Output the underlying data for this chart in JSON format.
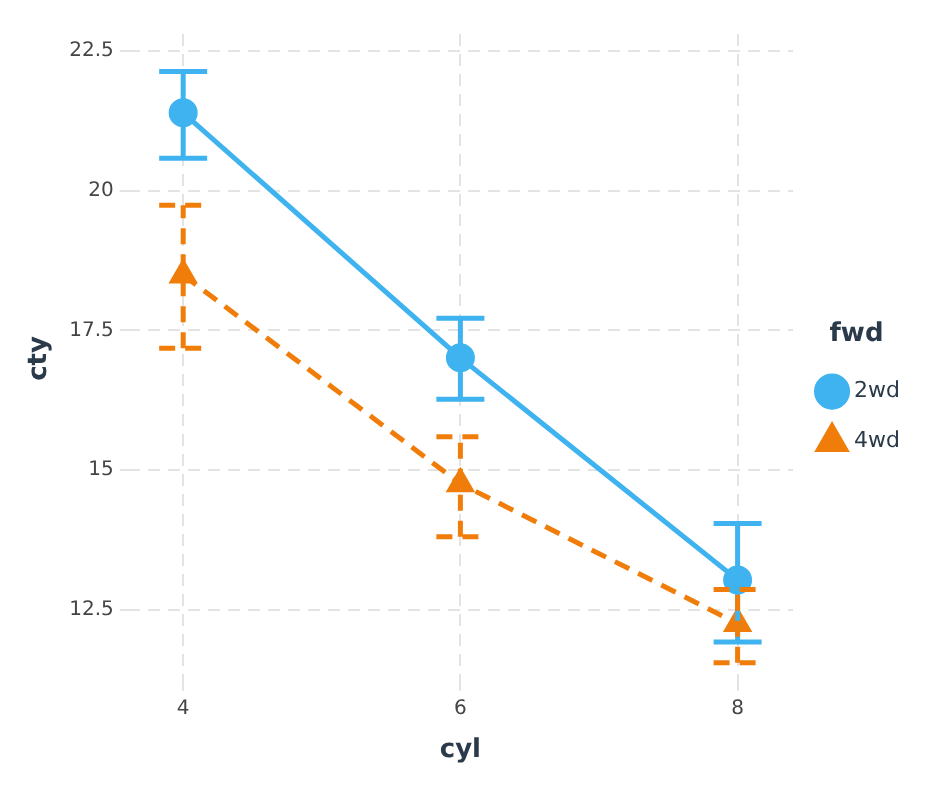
{
  "chart_data": {
    "type": "line",
    "xlabel": "cyl",
    "ylabel": "cty",
    "legend_title": "fwd",
    "legend": "right",
    "grid": true,
    "x": [
      4,
      6,
      8
    ],
    "xlim": [
      3.6,
      8.4
    ],
    "xticks": [
      4,
      6,
      8
    ],
    "ylim": [
      11.2,
      22.8
    ],
    "yticks": [
      12.5,
      15,
      17.5,
      20,
      22.5
    ],
    "series": [
      {
        "name": "2wd",
        "color": "#3fb3f0",
        "marker": "circle",
        "line_style": "solid",
        "values": [
          21.39,
          17.01,
          13.04
        ],
        "errors": [
          [
            20.58,
            22.13
          ],
          [
            16.27,
            17.72
          ],
          [
            11.93,
            14.05
          ]
        ]
      },
      {
        "name": "4wd",
        "color": "#f07d0a",
        "marker": "triangle",
        "line_style": "dashed",
        "values": [
          18.49,
          14.76,
          12.26
        ],
        "errors": [
          [
            17.18,
            19.74
          ],
          [
            13.81,
            15.6
          ],
          [
            11.56,
            12.87
          ]
        ]
      }
    ]
  }
}
